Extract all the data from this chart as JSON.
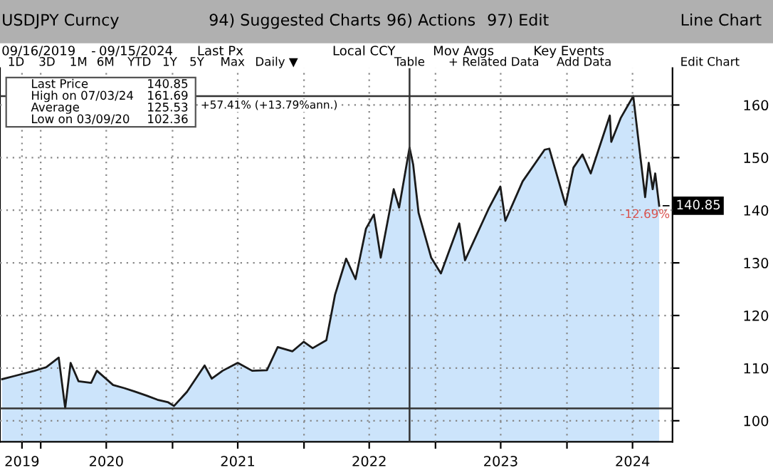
{
  "chart_data": {
    "type": "area",
    "title": "USDJPY Curncy",
    "x": [
      "2019-09-16",
      "2019-10-20",
      "2019-12-15",
      "2020-01-17",
      "2020-02-20",
      "2020-03-09",
      "2020-03-24",
      "2020-04-15",
      "2020-05-20",
      "2020-06-05",
      "2020-07-20",
      "2020-08-20",
      "2020-09-20",
      "2020-10-20",
      "2020-11-20",
      "2020-12-20",
      "2021-01-05",
      "2021-02-10",
      "2021-03-31",
      "2021-04-20",
      "2021-05-20",
      "2021-07-01",
      "2021-08-10",
      "2021-09-20",
      "2021-10-20",
      "2021-11-30",
      "2021-12-31",
      "2022-01-25",
      "2022-03-04",
      "2022-03-28",
      "2022-04-28",
      "2022-05-24",
      "2022-06-22",
      "2022-07-14",
      "2022-08-02",
      "2022-09-07",
      "2022-09-22",
      "2022-10-21",
      "2022-10-31",
      "2022-11-15",
      "2022-12-20",
      "2023-01-16",
      "2023-03-08",
      "2023-03-24",
      "2023-05-30",
      "2023-06-30",
      "2023-07-14",
      "2023-08-31",
      "2023-10-31",
      "2023-11-13",
      "2023-12-28",
      "2024-01-19",
      "2024-02-13",
      "2024-03-07",
      "2024-04-29",
      "2024-05-03",
      "2024-05-29",
      "2024-07-03",
      "2024-08-05",
      "2024-08-15",
      "2024-08-26",
      "2024-09-02",
      "2024-09-13"
    ],
    "series": [
      {
        "color": "#cce4fb",
        "values": [
          107.9,
          108.5,
          109.5,
          110.2,
          112.0,
          102.4,
          111.0,
          107.5,
          107.2,
          109.5,
          106.8,
          106.2,
          105.5,
          104.8,
          104.0,
          103.5,
          102.8,
          105.5,
          110.5,
          108.0,
          109.5,
          111.0,
          109.5,
          109.6,
          114.0,
          113.2,
          115.0,
          113.8,
          115.3,
          123.9,
          130.8,
          126.9,
          136.5,
          139.2,
          131.0,
          144.0,
          140.5,
          151.9,
          148.7,
          139.5,
          131.0,
          128.0,
          137.5,
          130.5,
          140.5,
          144.5,
          138.0,
          145.5,
          151.5,
          151.7,
          141.0,
          148.1,
          150.6,
          147.0,
          158.0,
          153.0,
          157.5,
          161.69,
          142.5,
          149.0,
          144.0,
          147.0,
          140.85
        ]
      }
    ],
    "xlim": [
      "2019-09-10",
      "2024-10-20"
    ],
    "xticks": [
      {
        "value": "2019-11-10",
        "label": "2019"
      },
      {
        "value": "2020-01-01",
        "label": null
      },
      {
        "value": "2020-07-01",
        "label": "2020"
      },
      {
        "value": "2021-01-01",
        "label": null
      },
      {
        "value": "2021-07-01",
        "label": "2021"
      },
      {
        "value": "2022-01-01",
        "label": null
      },
      {
        "value": "2022-07-01",
        "label": "2022"
      },
      {
        "value": "2023-01-01",
        "label": null
      },
      {
        "value": "2023-07-01",
        "label": "2023"
      },
      {
        "value": "2024-01-01",
        "label": null
      },
      {
        "value": "2024-07-01",
        "label": "2024"
      }
    ],
    "ylim": [
      96,
      167
    ],
    "yticks": [
      100,
      110,
      120,
      130,
      140,
      150,
      160
    ],
    "grid": true,
    "ref_lines": [
      {
        "axis": "y",
        "value": 161.69,
        "label": "+57.41% (+13.79%ann.)",
        "color": "#333333"
      },
      {
        "axis": "y",
        "value": 102.36,
        "label": null,
        "color": "#333333"
      },
      {
        "axis": "x",
        "value": "2022-10-21",
        "label": null,
        "color": "#333333"
      }
    ],
    "annotations": [
      "94) Suggested Charts",
      "96) Actions",
      "97) Edit",
      "Line Chart",
      "09/16/2019",
      "-",
      "09/15/2024",
      "Last Px",
      "Local CCY",
      "Mov Avgs",
      "Key Events",
      "1D",
      "3D",
      "1M",
      "6M",
      "YTD",
      "1Y",
      "5Y",
      "Max",
      "Daily ▼",
      "Table",
      "+ Related Data",
      "Add Data",
      "Edit Chart",
      "Last Price",
      "140.85",
      "High on 07/03/24",
      "161.69",
      "Average",
      "125.53",
      "Low on 03/09/20",
      "102.36",
      {
        "text": "-12.69%",
        "x": "2024-08-05",
        "y": 142.5
      },
      {
        "text": "140.85",
        "x": "2024-09-13",
        "y": 140.85
      }
    ]
  }
}
